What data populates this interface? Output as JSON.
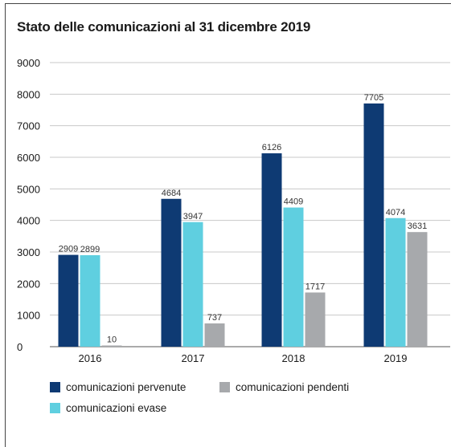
{
  "chart_data": {
    "type": "bar",
    "title": "Stato delle comunicazioni al 31 dicembre 2019",
    "categories": [
      "2016",
      "2017",
      "2018",
      "2019"
    ],
    "yticks": [
      "0",
      "1000",
      "2000",
      "3000",
      "4000",
      "5000",
      "6000",
      "7000",
      "8000",
      "9000"
    ],
    "ylim": [
      0,
      9000
    ],
    "grid": true,
    "legend_position": "bottom",
    "series": [
      {
        "name": "comunicazioni pervenute",
        "color": "#0e3a73",
        "values": [
          2909,
          4684,
          6126,
          7705
        ]
      },
      {
        "name": "comunicazioni evase",
        "color": "#5fcfe0",
        "values": [
          2899,
          3947,
          4409,
          4074
        ]
      },
      {
        "name": "comunicazioni pendenti",
        "color": "#a7a9ac",
        "values": [
          10,
          737,
          1717,
          3631
        ]
      }
    ]
  }
}
